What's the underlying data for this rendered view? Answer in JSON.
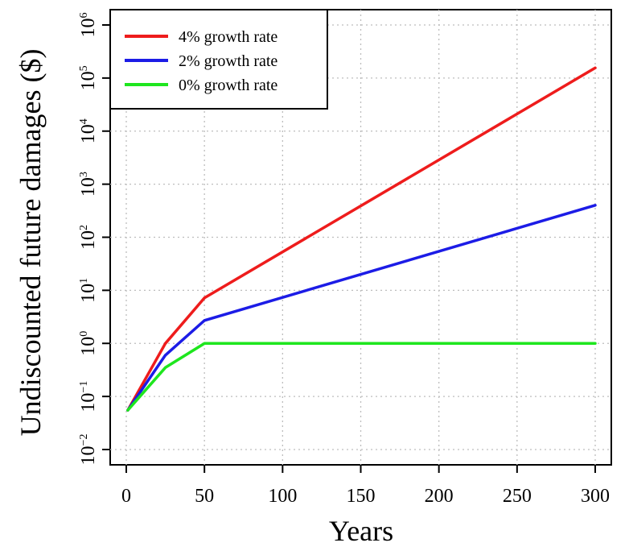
{
  "chart_data": {
    "type": "line",
    "xlabel": "Years",
    "ylabel": "Undiscounted future damages ($)",
    "xlim": [
      0,
      300
    ],
    "ylim": [
      0.01,
      1000000
    ],
    "yscale": "log",
    "grid": true,
    "legend_position": "top-left",
    "x_ticks": [
      0,
      50,
      100,
      150,
      200,
      250,
      300
    ],
    "x_tick_labels": [
      "0",
      "50",
      "100",
      "150",
      "200",
      "250",
      "300"
    ],
    "y_ticks": [
      0.01,
      0.1,
      1,
      10,
      100,
      1000,
      10000,
      100000,
      1000000
    ],
    "y_tick_labels": [
      {
        "base": "10",
        "exp": "−2"
      },
      {
        "base": "10",
        "exp": "−1"
      },
      {
        "base": "10",
        "exp": "0"
      },
      {
        "base": "10",
        "exp": "1"
      },
      {
        "base": "10",
        "exp": "2"
      },
      {
        "base": "10",
        "exp": "3"
      },
      {
        "base": "10",
        "exp": "4"
      },
      {
        "base": "10",
        "exp": "5"
      },
      {
        "base": "10",
        "exp": "6"
      }
    ],
    "series": [
      {
        "name": "4% growth rate",
        "color": "#ee1c1c",
        "x": [
          1,
          25,
          50,
          300
        ],
        "y": [
          0.055,
          1.0,
          7.2,
          155000
        ]
      },
      {
        "name": "2% growth rate",
        "color": "#1c1ce6",
        "x": [
          1,
          25,
          50,
          300
        ],
        "y": [
          0.055,
          0.6,
          2.7,
          400
        ]
      },
      {
        "name": "0% growth rate",
        "color": "#1ee61e",
        "x": [
          1,
          25,
          50,
          300
        ],
        "y": [
          0.055,
          0.35,
          1.0,
          1.0
        ]
      }
    ]
  }
}
